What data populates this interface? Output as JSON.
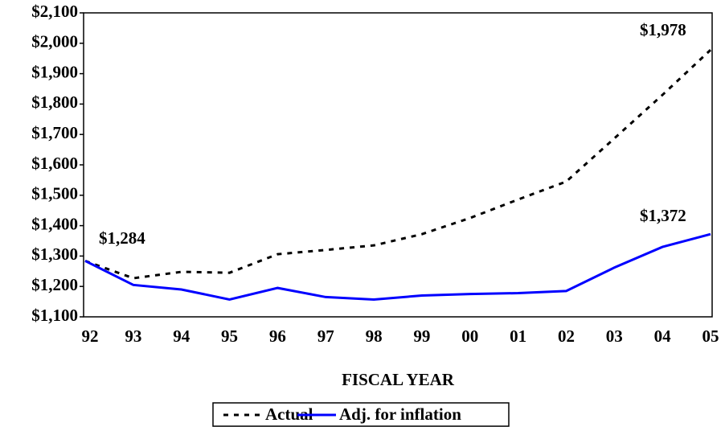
{
  "chart_data": {
    "type": "line",
    "x_label": "FISCAL YEAR",
    "categories": [
      "92",
      "93",
      "94",
      "95",
      "96",
      "97",
      "98",
      "99",
      "00",
      "01",
      "02",
      "03",
      "04",
      "05"
    ],
    "series": [
      {
        "name": "Actual",
        "color": "#000000",
        "dash": true,
        "values": [
          1284,
          1227,
          1248,
          1245,
          1306,
          1320,
          1335,
          1372,
          1425,
          1486,
          1545,
          1687,
          1830,
          1978
        ]
      },
      {
        "name": "Adj. for inflation",
        "color": "#0000ff",
        "dash": false,
        "values": [
          1284,
          1205,
          1190,
          1157,
          1195,
          1165,
          1157,
          1170,
          1175,
          1178,
          1185,
          1262,
          1330,
          1372
        ]
      }
    ],
    "annotations": [
      "$1,284",
      "$1,978",
      "$1,372"
    ],
    "ylim": [
      1100,
      2100
    ],
    "yticks": [
      {
        "value": 1100,
        "label": "$1,100"
      },
      {
        "value": 1200,
        "label": "$1,200"
      },
      {
        "value": 1300,
        "label": "$1,300"
      },
      {
        "value": 1400,
        "label": "$1,400"
      },
      {
        "value": 1500,
        "label": "$1,500"
      },
      {
        "value": 1600,
        "label": "$1,600"
      },
      {
        "value": 1700,
        "label": "$1,700"
      },
      {
        "value": 1800,
        "label": "$1,800"
      },
      {
        "value": 1900,
        "label": "$1,900"
      },
      {
        "value": 2000,
        "label": "$2,000"
      },
      {
        "value": 2100,
        "label": "$2,100"
      }
    ],
    "legend": "bottom"
  }
}
